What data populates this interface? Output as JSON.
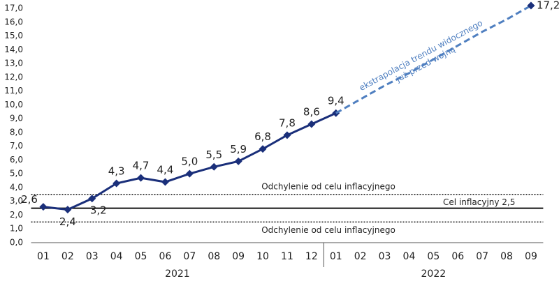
{
  "chart_data": {
    "type": "line",
    "categories": [
      "01",
      "02",
      "03",
      "04",
      "05",
      "06",
      "07",
      "08",
      "09",
      "10",
      "11",
      "12",
      "01",
      "02",
      "03",
      "04",
      "05",
      "06",
      "07",
      "08",
      "09"
    ],
    "groups": [
      {
        "label": "2021",
        "count": 12
      },
      {
        "label": "2022",
        "count": 9
      }
    ],
    "series": [
      {
        "color": "#1a2f7a",
        "style": "solid",
        "values": [
          2.6,
          2.4,
          3.2,
          4.3,
          4.7,
          4.4,
          5.0,
          5.5,
          5.9,
          6.8,
          7.8,
          8.6,
          9.4,
          null,
          null,
          null,
          null,
          null,
          null,
          null,
          null
        ],
        "value_labels": [
          "2,6",
          "2,4",
          "3,2",
          "4,3",
          "4,7",
          "4,4",
          "5,0",
          "5,5",
          "5,9",
          "6,8",
          "7,8",
          "8,6",
          "9,4",
          null,
          null,
          null,
          null,
          null,
          null,
          null,
          null
        ]
      },
      {
        "color": "#4f7fc0",
        "style": "dashed",
        "values": [
          null,
          null,
          null,
          null,
          null,
          null,
          null,
          null,
          null,
          null,
          null,
          null,
          9.4,
          10.4,
          11.4,
          12.3,
          13.3,
          14.3,
          15.3,
          16.2,
          17.2
        ],
        "value_labels": [
          null,
          null,
          null,
          null,
          null,
          null,
          null,
          null,
          null,
          null,
          null,
          null,
          null,
          null,
          null,
          null,
          null,
          null,
          null,
          null,
          "17,2"
        ]
      }
    ],
    "reference_lines": [
      {
        "value": 3.5,
        "label": "Odchylenie od celu inflacyjnego",
        "style": "dotted"
      },
      {
        "value": 2.5,
        "label": "Cel inflacyjny 2,5",
        "style": "solid"
      },
      {
        "value": 1.5,
        "label": "Odchylenie od celu inflacyjnego",
        "style": "dotted"
      }
    ],
    "annotation": [
      "ekstrapolacja trendu widocznego",
      "już przed wojną"
    ],
    "ylim": [
      0,
      17
    ],
    "yticks": [
      {
        "value": 0,
        "label": "0,0"
      },
      {
        "value": 1,
        "label": "1,0"
      },
      {
        "value": 2,
        "label": "2,0"
      },
      {
        "value": 3,
        "label": "3,0"
      },
      {
        "value": 4,
        "label": "4,0"
      },
      {
        "value": 5,
        "label": "5,0"
      },
      {
        "value": 6,
        "label": "6,0"
      },
      {
        "value": 7,
        "label": "7,0"
      },
      {
        "value": 8,
        "label": "8,0"
      },
      {
        "value": 9,
        "label": "9,0"
      },
      {
        "value": 10,
        "label": "10,0"
      },
      {
        "value": 11,
        "label": "11,0"
      },
      {
        "value": 12,
        "label": "12,0"
      },
      {
        "value": 13,
        "label": "13,0"
      },
      {
        "value": 14,
        "label": "14,0"
      },
      {
        "value": 15,
        "label": "15,0"
      },
      {
        "value": 16,
        "label": "16,0"
      },
      {
        "value": 17,
        "label": "17,0"
      }
    ]
  }
}
